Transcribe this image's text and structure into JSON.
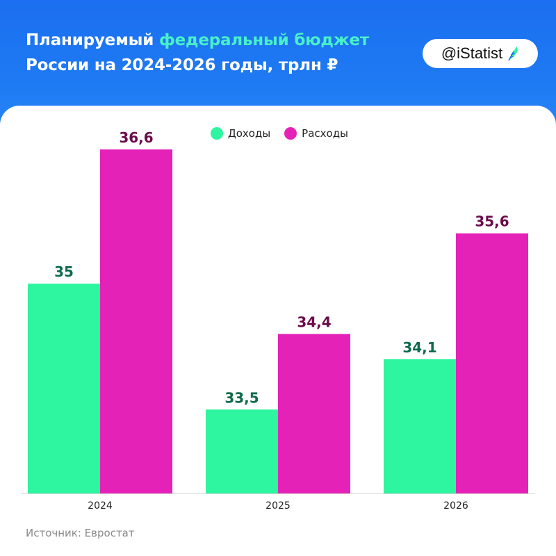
{
  "header": {
    "title_part1": "Планируемый ",
    "title_accent": "федеральный бюджет",
    "title_part2": "России на 2024-2026 годы, трлн ₽"
  },
  "brand": {
    "label": "@iStatist",
    "icon": "feather-leaf-icon"
  },
  "source": "Источник: Евростат",
  "colors": {
    "header_bg": "#1b6ff0",
    "accent": "#49f0c8",
    "income": "#2ef59f",
    "expense": "#e522b8",
    "income_label": "#0f6b4a",
    "expense_label": "#6b0b4a"
  },
  "chart_data": {
    "type": "bar",
    "categories": [
      "2024",
      "2025",
      "2026"
    ],
    "series": [
      {
        "name": "Доходы",
        "values": [
          35,
          33.5,
          34.1
        ],
        "labels": [
          "35",
          "33,5",
          "34,1"
        ]
      },
      {
        "name": "Расходы",
        "values": [
          36.6,
          34.4,
          35.6
        ],
        "labels": [
          "36,6",
          "34,4",
          "35,6"
        ]
      }
    ],
    "title": "Планируемый федеральный бюджет России на 2024-2026 годы, трлн ₽",
    "ylim": [
      32.5,
      37
    ],
    "grid": false,
    "legend": "top-center"
  }
}
